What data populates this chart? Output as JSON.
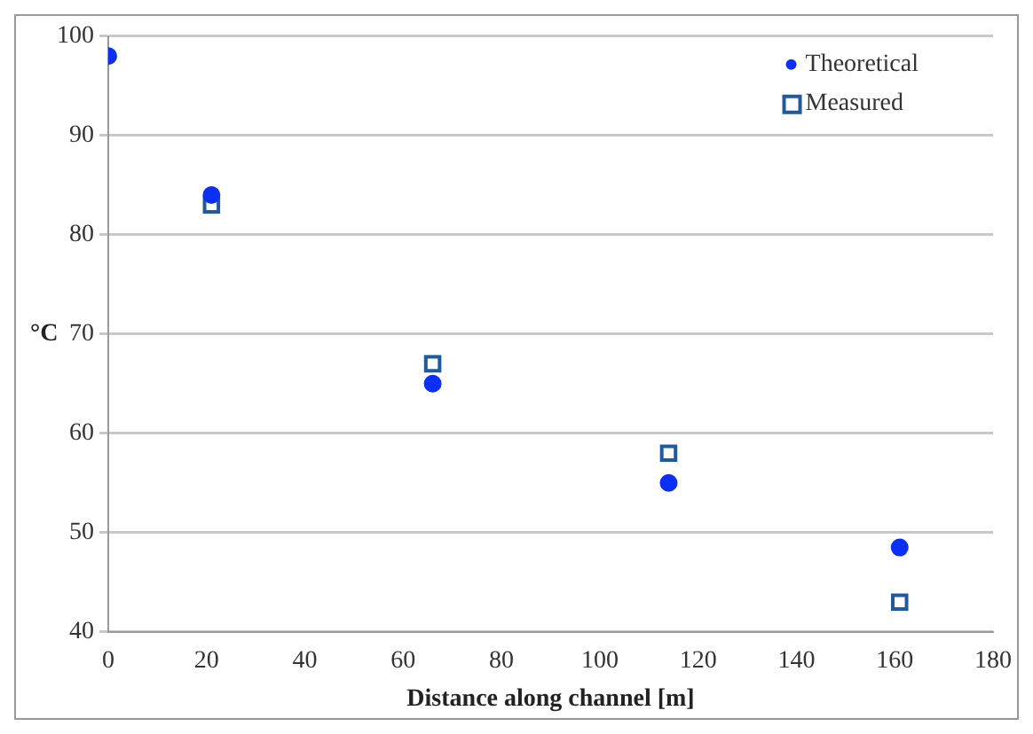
{
  "chart_data": {
    "type": "scatter",
    "xlabel": "Distance along channel [m]",
    "ylabel": "°C",
    "xlim": [
      0,
      180
    ],
    "xticks": [
      0,
      20,
      40,
      60,
      80,
      100,
      120,
      140,
      160,
      180
    ],
    "ylim": [
      40,
      100
    ],
    "yticks": [
      40,
      50,
      60,
      70,
      80,
      90,
      100
    ],
    "grid": "y",
    "legend": "top right",
    "series": [
      {
        "name": "Theoretical",
        "color": "#0b2ff5",
        "marker": "circle",
        "x": [
          0,
          21,
          66,
          114,
          161
        ],
        "values": [
          98,
          84,
          65,
          55,
          48.5
        ]
      },
      {
        "name": "Measured",
        "color": "#1f5a9e",
        "marker": "square",
        "x": [
          21,
          66,
          114,
          161
        ],
        "values": [
          83,
          67,
          58,
          43
        ]
      }
    ]
  }
}
